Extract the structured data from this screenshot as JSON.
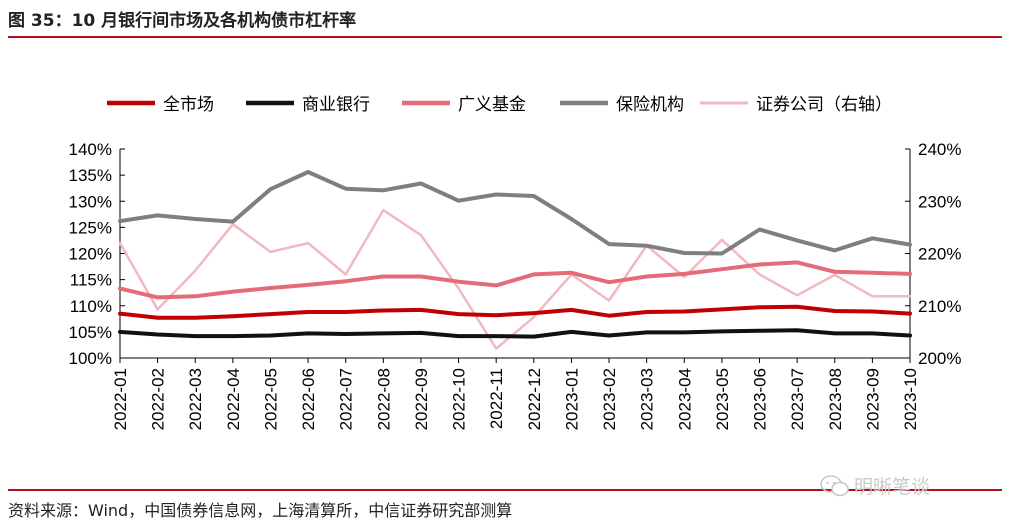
{
  "header": {
    "title": "图 35：10 月银行间市场及各机构债市杠杆率"
  },
  "footer": {
    "source": "资料来源：Wind，中国债券信息网，上海清算所，中信证券研究部测算",
    "watermark": "明晰笔谈"
  },
  "chart_data": {
    "type": "line",
    "title": "",
    "xlabel": "",
    "ylabel": "",
    "ylim": [
      100,
      140
    ],
    "y2lim": [
      200,
      240
    ],
    "y_ticks": [
      "100%",
      "105%",
      "110%",
      "115%",
      "120%",
      "125%",
      "130%",
      "135%",
      "140%"
    ],
    "y2_ticks": [
      "200%",
      "210%",
      "220%",
      "230%",
      "240%"
    ],
    "legend_position": "top",
    "categories": [
      "2022-01",
      "2022-02",
      "2022-03",
      "2022-04",
      "2022-05",
      "2022-06",
      "2022-07",
      "2022-08",
      "2022-09",
      "2022-10",
      "2022-11",
      "2022-12",
      "2023-01",
      "2023-02",
      "2023-03",
      "2023-04",
      "2023-05",
      "2023-06",
      "2023-07",
      "2023-08",
      "2023-09",
      "2023-10"
    ],
    "series": [
      {
        "name": "全市场",
        "axis": "left",
        "color": "#c00000",
        "width": 4,
        "values": [
          108.5,
          107.7,
          107.7,
          108.0,
          108.4,
          108.8,
          108.8,
          109.1,
          109.2,
          108.4,
          108.2,
          108.6,
          109.2,
          108.1,
          108.8,
          108.9,
          109.3,
          109.7,
          109.8,
          109.0,
          108.9,
          108.5
        ]
      },
      {
        "name": "商业银行",
        "axis": "left",
        "color": "#111111",
        "width": 4,
        "values": [
          105.0,
          104.5,
          104.2,
          104.2,
          104.3,
          104.7,
          104.6,
          104.7,
          104.8,
          104.2,
          104.2,
          104.1,
          105.0,
          104.3,
          104.9,
          104.9,
          105.1,
          105.2,
          105.3,
          104.7,
          104.7,
          104.3
        ]
      },
      {
        "name": "广义基金",
        "axis": "left",
        "color": "#e46b78",
        "width": 4,
        "values": [
          113.3,
          111.6,
          111.8,
          112.7,
          113.4,
          114.0,
          114.7,
          115.6,
          115.6,
          114.6,
          113.9,
          116.0,
          116.3,
          114.5,
          115.6,
          116.1,
          117.0,
          117.9,
          118.3,
          116.5,
          116.3,
          116.1
        ]
      },
      {
        "name": "保险机构",
        "axis": "left",
        "color": "#7f7f7f",
        "width": 4,
        "values": [
          126.2,
          127.3,
          126.6,
          126.1,
          132.3,
          135.6,
          132.4,
          132.1,
          133.4,
          130.1,
          131.3,
          131.0,
          126.6,
          121.8,
          121.5,
          120.1,
          120.0,
          124.6,
          122.5,
          120.6,
          122.9,
          121.7
        ]
      },
      {
        "name": "证券公司（右轴）",
        "axis": "right",
        "color": "#f2b8bf",
        "width": 2.5,
        "values": [
          222.0,
          209.3,
          216.7,
          225.6,
          220.3,
          222.0,
          216.0,
          228.3,
          223.5,
          213.3,
          201.8,
          207.8,
          216.0,
          211.0,
          221.5,
          215.5,
          222.6,
          216.0,
          212.0,
          215.9,
          211.8,
          211.8
        ]
      }
    ]
  }
}
